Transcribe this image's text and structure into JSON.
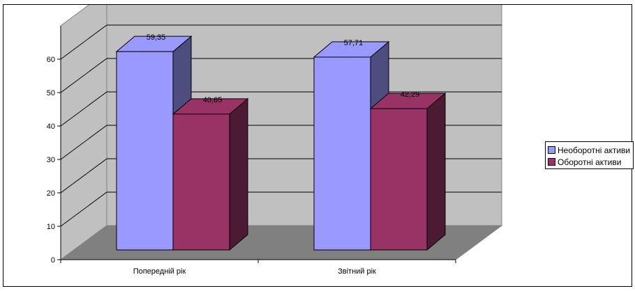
{
  "chart_data": {
    "type": "bar",
    "categories": [
      "Попередній рік",
      "Звітний рік"
    ],
    "series": [
      {
        "name": "Необоротні активи",
        "values": [
          59.35,
          57.71
        ],
        "labels": [
          "59,35",
          "57,71"
        ],
        "color": "#9999ff"
      },
      {
        "name": "Оборотні активи",
        "values": [
          40.65,
          42.29
        ],
        "labels": [
          "40,65",
          "42,29"
        ],
        "color": "#993366"
      }
    ],
    "y_ticks": [
      "0",
      "10",
      "20",
      "30",
      "40",
      "50",
      "60"
    ],
    "ylim": [
      0,
      70
    ],
    "grid": true,
    "style": "3d-clustered-column",
    "legend_position": "right",
    "colors": {
      "back_wall": "#c0c0c0",
      "floor": "#808080",
      "gridline": "#000000"
    },
    "title": "",
    "xlabel": "",
    "ylabel": ""
  }
}
